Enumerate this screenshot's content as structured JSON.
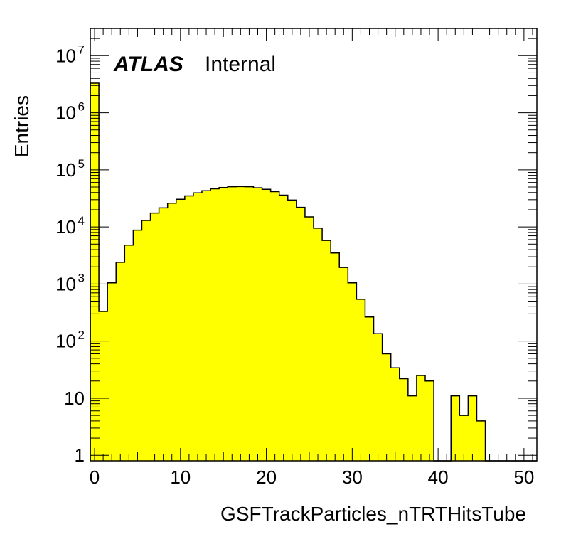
{
  "chart_data": {
    "type": "bar",
    "histogram": true,
    "xlabel": "GSFTrackParticles_nTRTHitsTube",
    "ylabel": "Entries",
    "xlim": [
      -0.5,
      51.5
    ],
    "ylim": [
      0.8,
      30000000
    ],
    "yscale": "log",
    "grid": false,
    "fill_color": "#ffff00",
    "line_color": "#000000",
    "atlas_label": {
      "tag": "ATLAS",
      "text": "Internal"
    },
    "x_tick_labels": [
      "0",
      "10",
      "20",
      "30",
      "40",
      "50"
    ],
    "x_ticks": [
      0,
      10,
      20,
      30,
      40,
      50
    ],
    "y_ticks": [
      {
        "value": 1,
        "base": "1",
        "exp": ""
      },
      {
        "value": 10,
        "base": "10",
        "exp": ""
      },
      {
        "value": 100,
        "base": "10",
        "exp": "2"
      },
      {
        "value": 1000,
        "base": "10",
        "exp": "3"
      },
      {
        "value": 10000,
        "base": "10",
        "exp": "4"
      },
      {
        "value": 100000,
        "base": "10",
        "exp": "5"
      },
      {
        "value": 1000000,
        "base": "10",
        "exp": "6"
      },
      {
        "value": 10000000,
        "base": "10",
        "exp": "7"
      }
    ],
    "bin_width": 1,
    "bin_start": -0.5,
    "values": [
      3300000,
      330,
      1050,
      2400,
      4800,
      8800,
      13000,
      17500,
      21500,
      26000,
      30500,
      35000,
      39500,
      43000,
      46500,
      49000,
      50500,
      51000,
      50500,
      48500,
      45500,
      41500,
      36000,
      29500,
      22000,
      15000,
      9500,
      5800,
      3500,
      1950,
      1050,
      540,
      265,
      135,
      60,
      34,
      22,
      11,
      25,
      20,
      0,
      0,
      11,
      5,
      11,
      4,
      0,
      0,
      0,
      0,
      0,
      0
    ]
  }
}
